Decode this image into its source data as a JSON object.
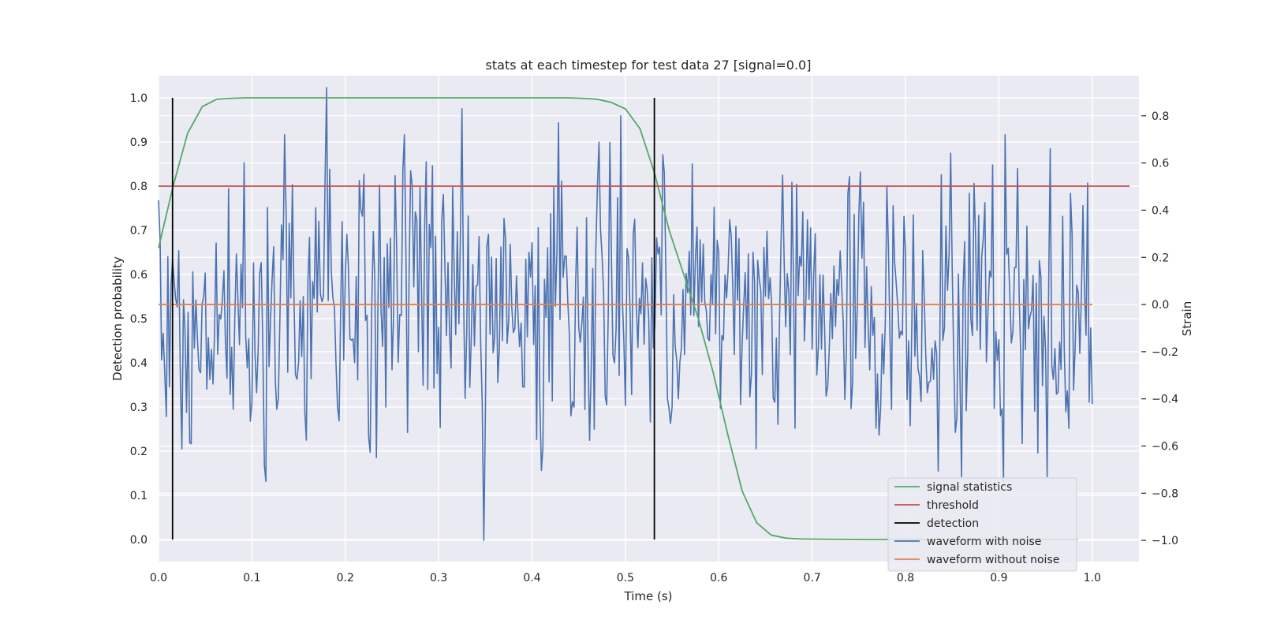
{
  "chart_data": {
    "type": "line",
    "title": "stats at each timestep for test data 27 [signal=0.0]",
    "xlabel": "Time (s)",
    "ylabel": "Detection probability",
    "y2label": "Strain",
    "xlim": [
      0.0,
      1.05
    ],
    "ylim": [
      -0.05,
      1.05
    ],
    "y2lim": [
      -1.09,
      0.97
    ],
    "x_ticks": [
      "0.0",
      "0.1",
      "0.2",
      "0.3",
      "0.4",
      "0.5",
      "0.6",
      "0.7",
      "0.8",
      "0.9",
      "1.0"
    ],
    "y_ticks": [
      "0.0",
      "0.1",
      "0.2",
      "0.3",
      "0.4",
      "0.5",
      "0.6",
      "0.7",
      "0.8",
      "0.9",
      "1.0"
    ],
    "y2_ticks": [
      "−1.0",
      "−0.8",
      "−0.6",
      "−0.4",
      "−0.2",
      "0.0",
      "0.2",
      "0.4",
      "0.6",
      "0.8"
    ],
    "grid": true,
    "legend_position": "lower right",
    "series": [
      {
        "name": "signal statistics",
        "axis": "left",
        "color": "#55a868",
        "x": [
          0.0,
          0.0156,
          0.0312,
          0.0469,
          0.0625,
          0.0781,
          0.0938,
          0.125,
          0.25,
          0.375,
          0.4375,
          0.4531,
          0.4688,
          0.4844,
          0.5,
          0.5156,
          0.5312,
          0.5469,
          0.5625,
          0.5781,
          0.5938,
          0.6094,
          0.625,
          0.6406,
          0.6562,
          0.6719,
          0.6875,
          0.75,
          0.875,
          0.9844
        ],
        "y": [
          0.66,
          0.8,
          0.92,
          0.98,
          0.997,
          0.999,
          1.0,
          1.0,
          1.0,
          1.0,
          1.0,
          0.999,
          0.997,
          0.99,
          0.975,
          0.93,
          0.83,
          0.7,
          0.6,
          0.5,
          0.38,
          0.24,
          0.11,
          0.038,
          0.01,
          0.003,
          0.001,
          0.0,
          0.0,
          0.0
        ]
      },
      {
        "name": "threshold",
        "axis": "left",
        "color": "#c44e52",
        "x": [
          0.0,
          1.04
        ],
        "y": [
          0.8,
          0.8
        ]
      },
      {
        "name": "detection",
        "axis": "left",
        "color": "#000000",
        "events_x": [
          0.015,
          0.531
        ],
        "y_range": [
          0.0,
          1.0
        ]
      },
      {
        "name": "waveform with noise",
        "axis": "right",
        "color": "#4c72b0",
        "x_range": [
          0.0,
          1.0
        ],
        "samples": 600,
        "approx_range": [
          -1.0,
          0.92
        ],
        "notable_peaks": [
          {
            "x": 0.18,
            "y": 0.92
          },
          {
            "x": 0.325,
            "y": 0.83
          },
          {
            "x": 0.348,
            "y": -1.0
          },
          {
            "x": 0.428,
            "y": 0.77
          },
          {
            "x": 0.495,
            "y": 0.8
          },
          {
            "x": 0.907,
            "y": 0.72
          },
          {
            "x": 0.955,
            "y": 0.66
          },
          {
            "x": 0.86,
            "y": -0.73
          },
          {
            "x": 0.952,
            "y": -0.73
          }
        ]
      },
      {
        "name": "waveform without noise",
        "axis": "right",
        "color": "#dd8452",
        "x": [
          0.0,
          1.0
        ],
        "y": [
          0.0,
          0.0
        ]
      }
    ]
  }
}
